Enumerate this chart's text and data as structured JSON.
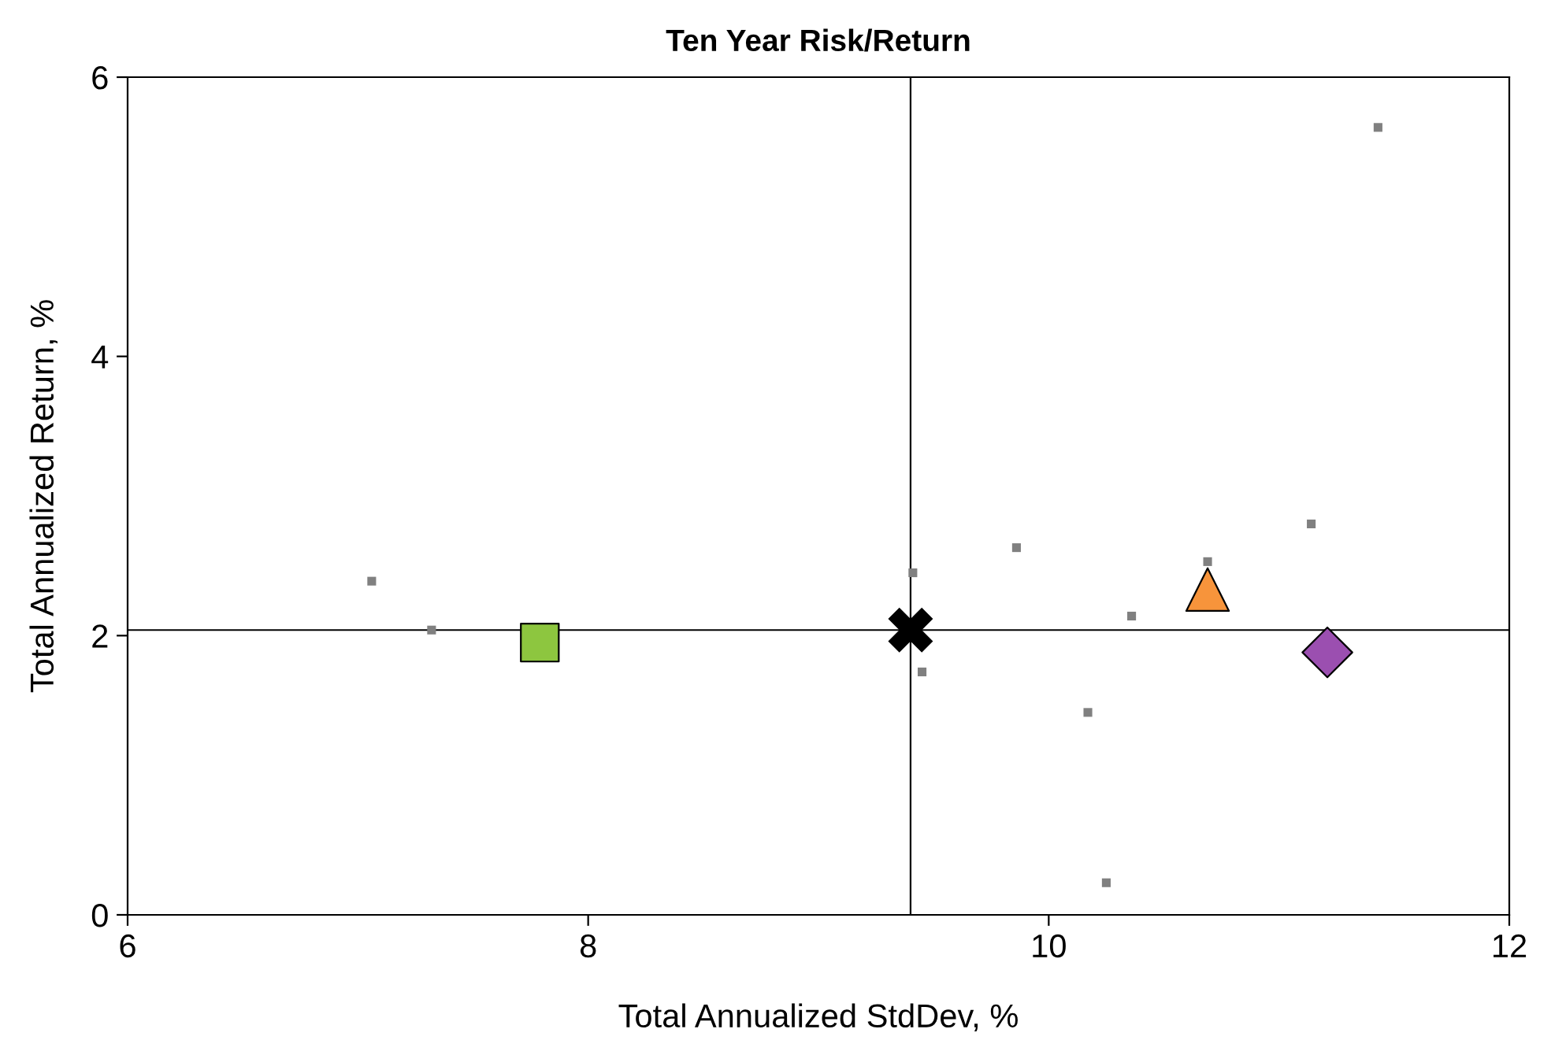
{
  "chart_data": {
    "type": "scatter",
    "title": "Ten Year Risk/Return",
    "xlabel": "Total Annualized StdDev, %",
    "ylabel": "Total Annualized Return, %",
    "xlim": [
      6,
      12
    ],
    "xticks": [
      6,
      8,
      10,
      12
    ],
    "ylim": [
      0,
      6
    ],
    "yticks": [
      0,
      2,
      4,
      6
    ],
    "grid": false,
    "legend": false,
    "ref_lines": [
      {
        "axis": "x",
        "value": 9.4,
        "color": "#000000"
      },
      {
        "axis": "y",
        "value": 2.04,
        "color": "#000000"
      }
    ],
    "series": [
      {
        "color": "#808080",
        "marker": "square",
        "x": [
          7.06,
          7.32,
          9.41,
          9.45,
          9.86,
          10.17,
          10.25,
          10.36,
          10.69,
          11.14,
          11.43
        ],
        "values": [
          2.39,
          2.04,
          2.45,
          1.74,
          2.63,
          1.45,
          0.23,
          2.14,
          2.53,
          2.8,
          5.64
        ]
      },
      {
        "color": "#8dc63f",
        "marker": "square",
        "x": [
          7.79
        ],
        "values": [
          1.95
        ]
      },
      {
        "color": "#000000",
        "marker": "cross",
        "x": [
          9.4
        ],
        "values": [
          2.04
        ]
      },
      {
        "color": "#f7943b",
        "marker": "triangle",
        "x": [
          10.69
        ],
        "values": [
          2.33
        ]
      },
      {
        "color": "#9b4fb0",
        "marker": "diamond",
        "x": [
          11.21
        ],
        "values": [
          1.88
        ]
      }
    ]
  }
}
